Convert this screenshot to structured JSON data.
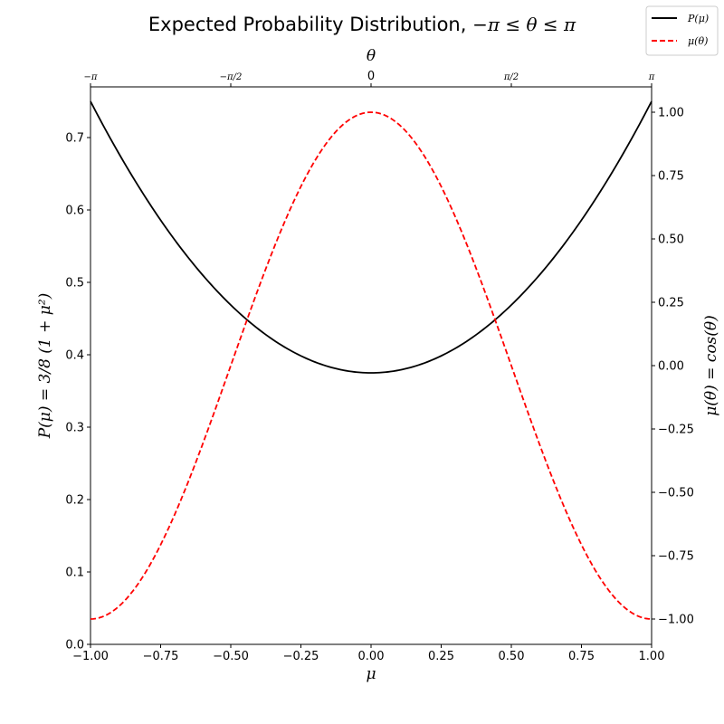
{
  "chart_data": {
    "type": "line",
    "title": "Expected Probability Distribution, −π ≤ θ ≤ π",
    "title_text": "Expected Probability Distribution, ",
    "title_math": "−π ≤ θ ≤ π",
    "xlabel": "μ",
    "top_xlabel": "θ",
    "ylabel": "P(μ) = 3/8 (1 + μ²)",
    "ylabel_right": "μ(θ) = cos(θ)",
    "xlim": [
      -1.0,
      1.0
    ],
    "ylim": [
      0.0,
      0.77
    ],
    "ylim_right": [
      -1.1,
      1.1
    ],
    "x_ticks": [
      "−1.00",
      "−0.75",
      "−0.50",
      "−0.25",
      "0.00",
      "0.25",
      "0.50",
      "0.75",
      "1.00"
    ],
    "y_ticks": [
      "0.0",
      "0.1",
      "0.2",
      "0.3",
      "0.4",
      "0.5",
      "0.6",
      "0.7"
    ],
    "y_right_ticks": [
      "−1.00",
      "−0.75",
      "−0.50",
      "−0.25",
      "0.00",
      "0.25",
      "0.50",
      "0.75",
      "1.00"
    ],
    "top_ticks": [
      "−π",
      "−π/2",
      "0",
      "π/2",
      "π"
    ],
    "grid": false,
    "legend_position": "top-right",
    "series": [
      {
        "name": "P(μ)",
        "axis": "left",
        "color": "#000000",
        "style": "solid",
        "x": [
          -1.0,
          -0.9,
          -0.8,
          -0.7,
          -0.6,
          -0.5,
          -0.4,
          -0.3,
          -0.2,
          -0.1,
          0.0,
          0.1,
          0.2,
          0.3,
          0.4,
          0.5,
          0.6,
          0.7,
          0.8,
          0.9,
          1.0
        ],
        "y": [
          0.75,
          0.679,
          0.615,
          0.559,
          0.51,
          0.469,
          0.435,
          0.409,
          0.39,
          0.379,
          0.375,
          0.379,
          0.39,
          0.409,
          0.435,
          0.469,
          0.51,
          0.559,
          0.615,
          0.679,
          0.75
        ]
      },
      {
        "name": "μ(θ)",
        "axis": "right",
        "color": "#ff0000",
        "style": "dashed",
        "x": [
          -1.0,
          -0.9,
          -0.8,
          -0.7,
          -0.6,
          -0.5,
          -0.4,
          -0.3,
          -0.2,
          -0.1,
          0.0,
          0.1,
          0.2,
          0.3,
          0.4,
          0.5,
          0.6,
          0.7,
          0.8,
          0.9,
          1.0
        ],
        "y": [
          -1.0,
          -0.951,
          -0.809,
          -0.588,
          -0.309,
          0.0,
          0.309,
          0.588,
          0.809,
          0.951,
          1.0,
          0.951,
          0.809,
          0.588,
          0.309,
          0.0,
          -0.309,
          -0.588,
          -0.809,
          -0.951,
          -1.0
        ]
      }
    ]
  }
}
